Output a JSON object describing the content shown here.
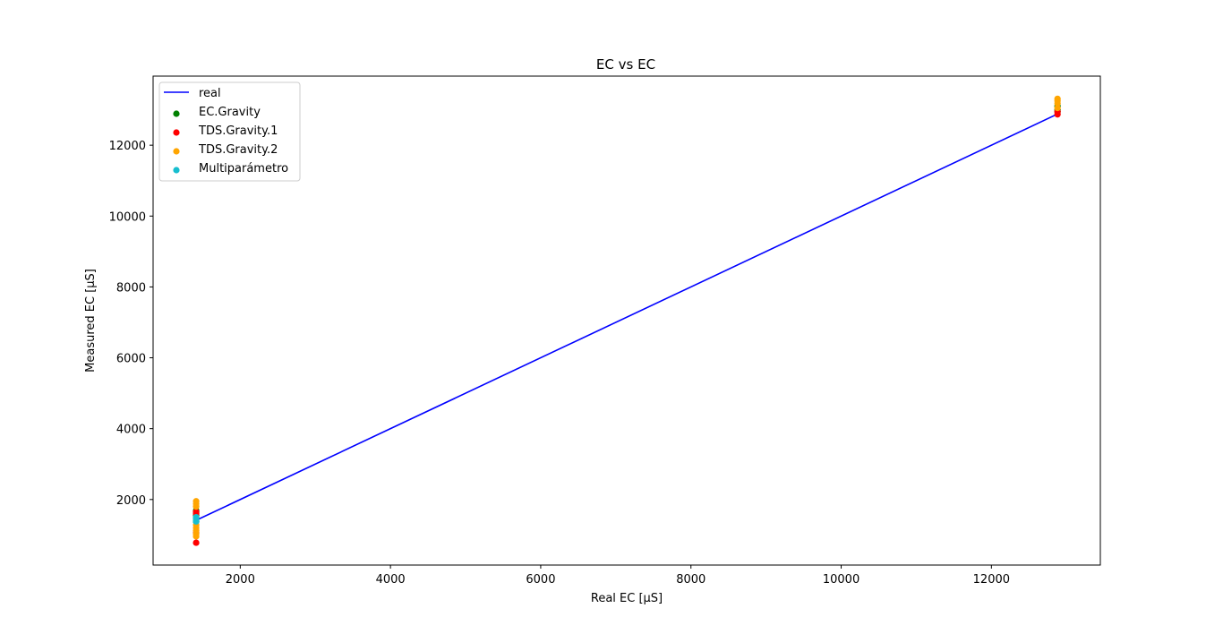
{
  "chart_data": {
    "type": "scatter",
    "title": "EC vs EC",
    "xlabel": "Real EC [μS]",
    "ylabel": "Measured EC [μS]",
    "xlim": [
      840,
      13450
    ],
    "ylim": [
      150,
      13950
    ],
    "xticks": [
      2000,
      4000,
      6000,
      8000,
      10000,
      12000
    ],
    "yticks": [
      2000,
      4000,
      6000,
      8000,
      10000,
      12000
    ],
    "grid": false,
    "legend_position": "top-left",
    "line": {
      "name": "real",
      "color": "#0000ff",
      "x": [
        1413,
        12880
      ],
      "y": [
        1413,
        12880
      ]
    },
    "series": [
      {
        "name": "EC.Gravity",
        "color": "#008000",
        "x": [
          1413,
          1413,
          1413,
          1413,
          1413,
          12880,
          12880,
          12880
        ],
        "y": [
          1690,
          1640,
          1550,
          1470,
          1380,
          13100,
          13000,
          12950
        ]
      },
      {
        "name": "TDS.Gravity.1",
        "color": "#ff0000",
        "x": [
          1413,
          1413,
          1413,
          1413,
          12880,
          12880
        ],
        "y": [
          1650,
          1600,
          1060,
          780,
          12950,
          12870
        ]
      },
      {
        "name": "TDS.Gravity.2",
        "color": "#ffa500",
        "x": [
          1413,
          1413,
          1413,
          1413,
          1413,
          1413,
          1413,
          1413,
          12880,
          12880,
          12880,
          12880
        ],
        "y": [
          1950,
          1880,
          1800,
          1280,
          1200,
          1120,
          1030,
          960,
          13310,
          13250,
          13180,
          13050
        ]
      },
      {
        "name": "Multiparámetro",
        "color": "#17becf",
        "x": [
          1413,
          1413,
          1413
        ],
        "y": [
          1500,
          1440,
          1380
        ]
      }
    ]
  }
}
